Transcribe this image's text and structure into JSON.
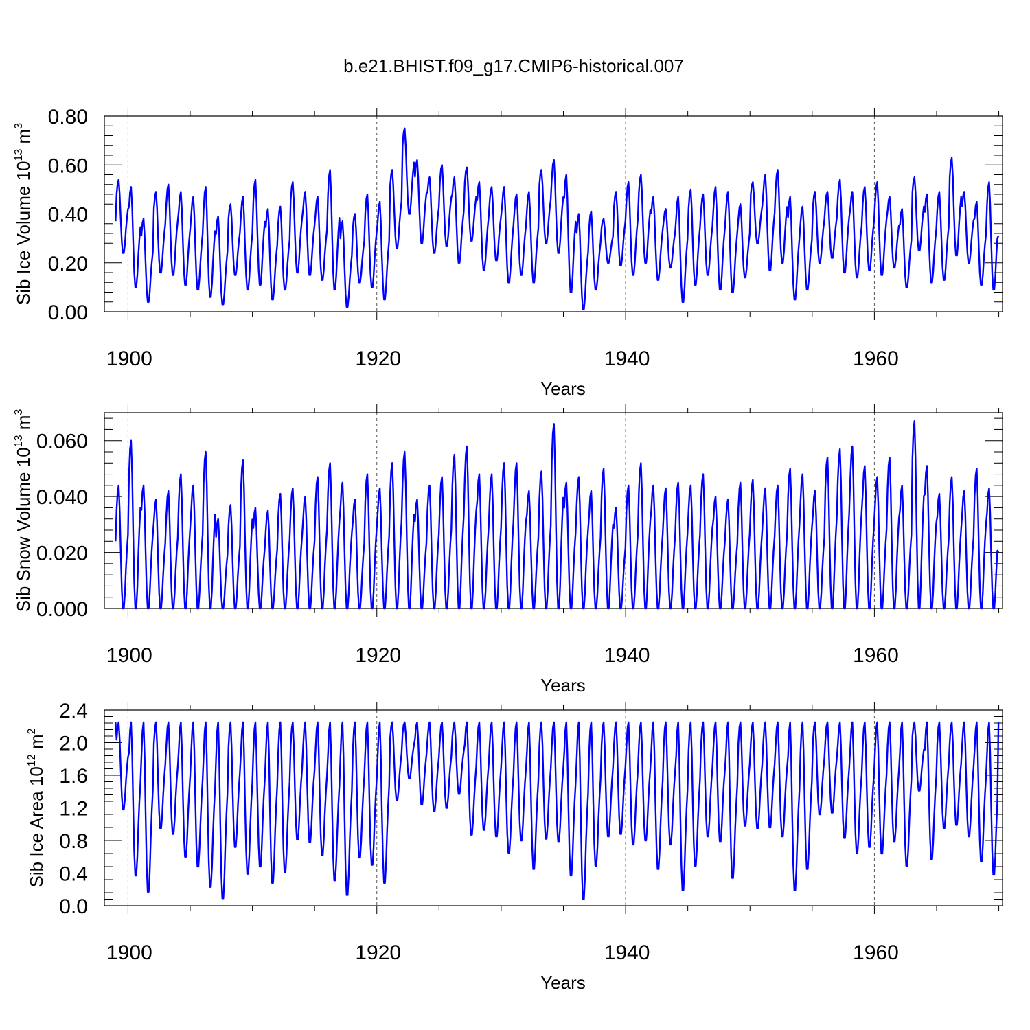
{
  "figure": {
    "title": "b.e21.BHIST.f09_g17.CMIP6-historical.007"
  },
  "colors": {
    "series": "#0000ff",
    "axes": "#000000",
    "ref_line": "#555555"
  },
  "chart_data": [
    {
      "type": "line",
      "name": "sib-ice-volume",
      "title": "",
      "xlabel": "Years",
      "ylabel": "Sib Ice Volume 10",
      "ylabel_sup": "13",
      "ylabel_unit": "m",
      "ylabel_unit_sup": "3",
      "xlim": [
        1898.1,
        1970.3
      ],
      "ylim": [
        0.0,
        0.8
      ],
      "xticks": [
        1900,
        1920,
        1940,
        1960
      ],
      "xtick_labels": [
        "1900",
        "1920",
        "1940",
        "1960"
      ],
      "yticks": [
        0.0,
        0.2,
        0.4,
        0.6,
        0.8
      ],
      "ytick_labels": [
        "0.00",
        "0.20",
        "0.40",
        "0.60",
        "0.80"
      ],
      "ref_lines_x": [
        1900,
        1920,
        1940,
        1960
      ],
      "x_start": 1899.0,
      "x_step": 0.0833,
      "annual_cycle": {
        "years": [
          1899,
          1900,
          1901,
          1902,
          1903,
          1904,
          1905,
          1906,
          1907,
          1908,
          1909,
          1910,
          1911,
          1912,
          1913,
          1914,
          1915,
          1916,
          1917,
          1918,
          1919,
          1920,
          1921,
          1922,
          1923,
          1924,
          1925,
          1926,
          1927,
          1928,
          1929,
          1930,
          1931,
          1932,
          1933,
          1934,
          1935,
          1936,
          1937,
          1938,
          1939,
          1940,
          1941,
          1942,
          1943,
          1944,
          1945,
          1946,
          1947,
          1948,
          1949,
          1950,
          1951,
          1952,
          1953,
          1954,
          1955,
          1956,
          1957,
          1958,
          1959,
          1960,
          1961,
          1962,
          1963,
          1964,
          1965,
          1966,
          1967,
          1968,
          1969
        ],
        "max": [
          0.54,
          0.51,
          0.38,
          0.49,
          0.52,
          0.49,
          0.47,
          0.51,
          0.39,
          0.44,
          0.47,
          0.54,
          0.42,
          0.43,
          0.53,
          0.49,
          0.47,
          0.58,
          0.37,
          0.4,
          0.48,
          0.45,
          0.58,
          0.75,
          0.62,
          0.55,
          0.6,
          0.55,
          0.59,
          0.53,
          0.51,
          0.51,
          0.48,
          0.49,
          0.58,
          0.62,
          0.56,
          0.4,
          0.41,
          0.38,
          0.49,
          0.53,
          0.56,
          0.47,
          0.42,
          0.47,
          0.5,
          0.48,
          0.51,
          0.49,
          0.44,
          0.53,
          0.56,
          0.58,
          0.47,
          0.43,
          0.49,
          0.49,
          0.54,
          0.49,
          0.51,
          0.53,
          0.47,
          0.42,
          0.55,
          0.48,
          0.49,
          0.63,
          0.49,
          0.45,
          0.53
        ],
        "min": [
          0.24,
          0.1,
          0.04,
          0.16,
          0.15,
          0.11,
          0.09,
          0.06,
          0.03,
          0.15,
          0.09,
          0.11,
          0.05,
          0.09,
          0.16,
          0.15,
          0.13,
          0.09,
          0.02,
          0.12,
          0.1,
          0.05,
          0.26,
          0.4,
          0.28,
          0.24,
          0.27,
          0.2,
          0.29,
          0.17,
          0.21,
          0.12,
          0.15,
          0.12,
          0.28,
          0.24,
          0.08,
          0.01,
          0.09,
          0.2,
          0.19,
          0.15,
          0.2,
          0.13,
          0.18,
          0.04,
          0.11,
          0.15,
          0.09,
          0.08,
          0.14,
          0.28,
          0.17,
          0.2,
          0.05,
          0.09,
          0.2,
          0.22,
          0.16,
          0.14,
          0.17,
          0.15,
          0.18,
          0.1,
          0.25,
          0.12,
          0.13,
          0.23,
          0.2,
          0.11,
          0.09
        ],
        "start": 0.37,
        "end": 0.31
      }
    },
    {
      "type": "line",
      "name": "sib-snow-volume",
      "title": "",
      "xlabel": "Years",
      "ylabel": "Sib Snow Volume 10",
      "ylabel_sup": "13",
      "ylabel_unit": "m",
      "ylabel_unit_sup": "3",
      "xlim": [
        1898.1,
        1970.3
      ],
      "ylim": [
        0.0,
        0.07
      ],
      "xticks": [
        1900,
        1920,
        1940,
        1960
      ],
      "xtick_labels": [
        "1900",
        "1920",
        "1940",
        "1960"
      ],
      "yticks": [
        0.0,
        0.02,
        0.04,
        0.06
      ],
      "ytick_labels": [
        "0.000",
        "0.020",
        "0.040",
        "0.060"
      ],
      "ref_lines_x": [
        1900,
        1920,
        1940,
        1960
      ],
      "x_start": 1899.0,
      "x_step": 0.0833,
      "annual_cycle": {
        "years": [
          1899,
          1900,
          1901,
          1902,
          1903,
          1904,
          1905,
          1906,
          1907,
          1908,
          1909,
          1910,
          1911,
          1912,
          1913,
          1914,
          1915,
          1916,
          1917,
          1918,
          1919,
          1920,
          1921,
          1922,
          1923,
          1924,
          1925,
          1926,
          1927,
          1928,
          1929,
          1930,
          1931,
          1932,
          1933,
          1934,
          1935,
          1936,
          1937,
          1938,
          1939,
          1940,
          1941,
          1942,
          1943,
          1944,
          1945,
          1946,
          1947,
          1948,
          1949,
          1950,
          1951,
          1952,
          1953,
          1954,
          1955,
          1956,
          1957,
          1958,
          1959,
          1960,
          1961,
          1962,
          1963,
          1964,
          1965,
          1966,
          1967,
          1968,
          1969
        ],
        "max": [
          0.044,
          0.06,
          0.044,
          0.039,
          0.042,
          0.048,
          0.044,
          0.056,
          0.032,
          0.037,
          0.053,
          0.036,
          0.035,
          0.041,
          0.043,
          0.04,
          0.047,
          0.052,
          0.045,
          0.039,
          0.048,
          0.043,
          0.052,
          0.056,
          0.039,
          0.044,
          0.047,
          0.055,
          0.058,
          0.048,
          0.048,
          0.052,
          0.052,
          0.042,
          0.049,
          0.066,
          0.045,
          0.047,
          0.042,
          0.05,
          0.036,
          0.044,
          0.052,
          0.044,
          0.043,
          0.045,
          0.044,
          0.048,
          0.04,
          0.039,
          0.045,
          0.046,
          0.043,
          0.044,
          0.05,
          0.048,
          0.042,
          0.054,
          0.057,
          0.058,
          0.051,
          0.047,
          0.054,
          0.044,
          0.067,
          0.051,
          0.041,
          0.047,
          0.042,
          0.05,
          0.043
        ],
        "min": [
          0.0,
          0.0,
          0.0,
          0.0,
          0.0,
          0.0,
          0.0,
          0.0,
          0.0,
          0.0,
          0.0,
          0.0,
          0.0,
          0.0,
          0.0,
          0.0,
          0.0,
          0.0,
          0.0,
          0.0,
          0.0,
          0.0,
          0.0,
          0.0,
          0.0,
          0.0,
          0.0,
          0.0,
          0.0,
          0.0,
          0.0,
          0.0,
          0.0,
          0.0,
          0.0,
          0.0,
          0.0,
          0.0,
          0.0,
          0.0,
          0.0,
          0.0,
          0.0,
          0.0,
          0.0,
          0.0,
          0.0,
          0.0,
          0.0,
          0.0,
          0.0,
          0.0,
          0.0,
          0.0,
          0.0,
          0.0,
          0.0,
          0.0,
          0.0,
          0.0,
          0.0,
          0.0,
          0.0,
          0.0,
          0.0,
          0.0,
          0.0,
          0.0,
          0.0,
          0.0,
          0.0
        ],
        "start": 0.024,
        "end": 0.02
      }
    },
    {
      "type": "line",
      "name": "sib-ice-area",
      "title": "",
      "xlabel": "Years",
      "ylabel": "Sib Ice Area 10",
      "ylabel_sup": "12",
      "ylabel_unit": "m",
      "ylabel_unit_sup": "2",
      "xlim": [
        1898.1,
        1970.3
      ],
      "ylim": [
        0.0,
        2.4
      ],
      "xticks": [
        1900,
        1920,
        1940,
        1960
      ],
      "xtick_labels": [
        "1900",
        "1920",
        "1940",
        "1960"
      ],
      "yticks": [
        0.0,
        0.4,
        0.8,
        1.2,
        1.6,
        2.0,
        2.4
      ],
      "ytick_labels": [
        "0.0",
        "0.4",
        "0.8",
        "1.2",
        "1.6",
        "2.0",
        "2.4"
      ],
      "ref_lines_x": [
        1900,
        1920,
        1940,
        1960
      ],
      "x_start": 1899.0,
      "x_step": 0.0833,
      "annual_cycle": {
        "years": [
          1899,
          1900,
          1901,
          1902,
          1903,
          1904,
          1905,
          1906,
          1907,
          1908,
          1909,
          1910,
          1911,
          1912,
          1913,
          1914,
          1915,
          1916,
          1917,
          1918,
          1919,
          1920,
          1921,
          1922,
          1923,
          1924,
          1925,
          1926,
          1927,
          1928,
          1929,
          1930,
          1931,
          1932,
          1933,
          1934,
          1935,
          1936,
          1937,
          1938,
          1939,
          1940,
          1941,
          1942,
          1943,
          1944,
          1945,
          1946,
          1947,
          1948,
          1949,
          1950,
          1951,
          1952,
          1953,
          1954,
          1955,
          1956,
          1957,
          1958,
          1959,
          1960,
          1961,
          1962,
          1963,
          1964,
          1965,
          1966,
          1967,
          1968,
          1969
        ],
        "max": [
          2.25,
          2.25,
          2.25,
          2.25,
          2.25,
          2.25,
          2.25,
          2.25,
          2.25,
          2.25,
          2.25,
          2.25,
          2.25,
          2.25,
          2.25,
          2.25,
          2.25,
          2.25,
          2.25,
          2.25,
          2.25,
          2.25,
          2.25,
          2.25,
          2.25,
          2.25,
          2.25,
          2.25,
          2.25,
          2.25,
          2.25,
          2.25,
          2.25,
          2.25,
          2.25,
          2.25,
          2.25,
          2.25,
          2.25,
          2.25,
          2.25,
          2.25,
          2.25,
          2.25,
          2.25,
          2.25,
          2.25,
          2.25,
          2.25,
          2.25,
          2.25,
          2.25,
          2.25,
          2.25,
          2.25,
          2.25,
          2.25,
          2.25,
          2.25,
          2.25,
          2.25,
          2.25,
          2.25,
          2.25,
          2.25,
          2.25,
          2.25,
          2.25,
          2.25,
          2.25,
          2.25
        ],
        "min": [
          1.18,
          0.37,
          0.17,
          0.95,
          0.88,
          0.6,
          0.48,
          0.23,
          0.09,
          0.72,
          0.39,
          0.48,
          0.28,
          0.41,
          0.81,
          0.78,
          0.62,
          0.31,
          0.13,
          0.59,
          0.5,
          0.28,
          1.29,
          1.56,
          1.24,
          1.16,
          1.2,
          1.37,
          0.87,
          0.93,
          0.85,
          0.65,
          0.8,
          0.45,
          0.82,
          0.79,
          0.37,
          0.08,
          0.49,
          0.85,
          0.88,
          0.75,
          0.8,
          0.45,
          0.75,
          0.19,
          0.49,
          0.85,
          0.79,
          0.34,
          0.98,
          0.95,
          0.96,
          0.85,
          0.19,
          0.45,
          1.12,
          1.14,
          0.83,
          0.65,
          0.72,
          0.64,
          0.79,
          0.49,
          1.41,
          0.57,
          0.95,
          0.99,
          0.85,
          0.54,
          0.38
        ],
        "start": 2.25,
        "end": 2.25
      }
    }
  ]
}
